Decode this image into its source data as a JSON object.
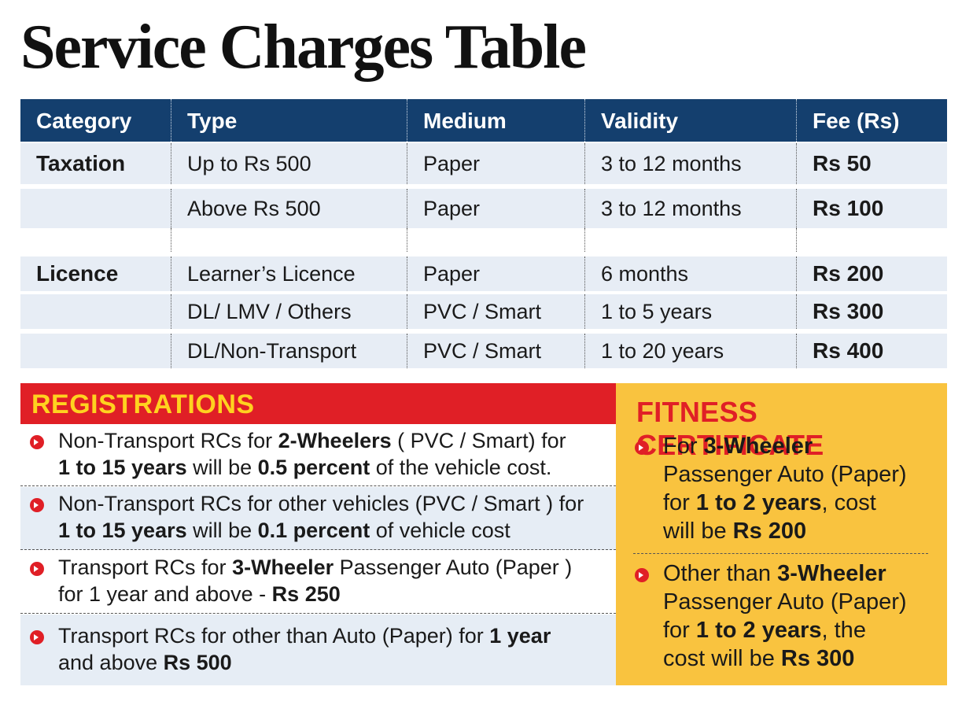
{
  "title": "Service Charges Table",
  "table": {
    "headers": [
      "Category",
      "Type",
      "Medium",
      "Validity",
      "Fee (Rs)"
    ],
    "rows": [
      {
        "category": "Taxation",
        "type": "Up to Rs 500",
        "medium": "Paper",
        "validity": "3 to 12 months",
        "fee": "Rs 50"
      },
      {
        "category": "",
        "type": "Above Rs 500",
        "medium": "Paper",
        "validity": "3 to 12 months",
        "fee": "Rs 100"
      },
      {
        "category": "Licence",
        "type": "Learner’s Licence",
        "medium": "Paper",
        "validity": "6 months",
        "fee": "Rs 200"
      },
      {
        "category": "",
        "type": "DL/  LMV / Others",
        "medium": "PVC / Smart",
        "validity": "1 to 5 years",
        "fee": "Rs 300"
      },
      {
        "category": "",
        "type": "DL/Non-Transport",
        "medium": "PVC / Smart",
        "validity": "1 to 20 years",
        "fee": "Rs 400"
      }
    ]
  },
  "registrations": {
    "heading": "REGISTRATIONS",
    "items": [
      {
        "l1a": "Non-Transport RCs  for ",
        "l1b": "2-Wheelers",
        "l1c": " ( PVC / Smart) for",
        "l2a": "1 to 15 years",
        "l2b": " will be ",
        "l2c": "0.5 percent",
        "l2d": " of the vehicle cost."
      },
      {
        "l1a": "Non-Transport RCs for other vehicles (PVC / Smart ) for",
        "l2a": "1 to 15 years",
        "l2b": " will be ",
        "l2c": "0.1 percent",
        "l2d": " of vehicle cost"
      },
      {
        "l1a": "Transport RCs for ",
        "l1b": "3-Wheeler",
        "l1c": " Passenger Auto (Paper )",
        "l2a": "for 1 year and above  -  ",
        "l2b": "Rs 250"
      },
      {
        "l1a": "Transport RCs for other than Auto (Paper) for ",
        "l1b": "1 year",
        "l2a": "and above ",
        "l2b": "Rs 500"
      }
    ]
  },
  "fitness": {
    "heading": "FITNESS CERTIFICATE",
    "items": [
      {
        "l1a": "For  ",
        "l1b": "3-Wheeler",
        "l2": "Passenger Auto (Paper)",
        "l3a": "for ",
        "l3b": "1 to 2 years",
        "l3c": ", cost",
        "l4a": "will be ",
        "l4b": "Rs 200"
      },
      {
        "l1a": "Other than ",
        "l1b": "3-Wheeler",
        "l2": "Passenger Auto (Paper)",
        "l3a": "for ",
        "l3b": "1 to 2 years",
        "l3c": ", the",
        "l4a": "cost will be ",
        "l4b": "Rs 300"
      }
    ]
  },
  "colors": {
    "table_header": "#143f6e",
    "row_shade": "#e7edf5",
    "registrations_header": "#e01f26",
    "registrations_header_text": "#ffd21f",
    "fitness_bg": "#f9c33f",
    "fitness_title": "#e01f26",
    "bullet": "#e01f26"
  },
  "icons": [
    "bullet-arrow-icon"
  ]
}
